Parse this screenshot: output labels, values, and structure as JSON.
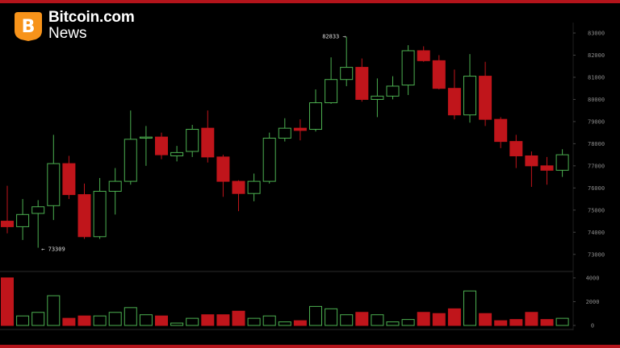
{
  "brand": {
    "name": "Bitcoin.com",
    "sub": "News",
    "logo_icon": "bitcoin-logo-icon",
    "logo_glyph": "B",
    "colors": {
      "logo": "#f7931a",
      "frame": "#b3141b"
    }
  },
  "chart_data": {
    "type": "candlestick",
    "title": "",
    "colors": {
      "up": "#4caf50",
      "down": "#c0151b"
    },
    "price_axis": {
      "ticks": [
        73000,
        74000,
        75000,
        76000,
        77000,
        78000,
        79000,
        80000,
        81000,
        82000,
        83000
      ],
      "labels": [
        "73000",
        "74000",
        "75000",
        "76000",
        "77000",
        "78000",
        "79000",
        "80000",
        "81000",
        "82000",
        "83000"
      ],
      "range": [
        72300,
        83400
      ]
    },
    "volume_axis": {
      "ticks": [
        0,
        2000,
        4000
      ],
      "labels": [
        "0",
        "2000",
        "4000"
      ],
      "range": [
        0,
        4200
      ]
    },
    "annotations": [
      {
        "label": "82833",
        "candle": 22,
        "price": 82833
      },
      {
        "label": "73309",
        "candle": 2,
        "price": 73309
      }
    ],
    "candles": [
      {
        "o": 74500,
        "h": 76100,
        "l": 73950,
        "c": 74250,
        "v": 4000
      },
      {
        "o": 74250,
        "h": 75500,
        "l": 73650,
        "c": 74800,
        "v": 800
      },
      {
        "o": 74850,
        "h": 75450,
        "l": 73300,
        "c": 75150,
        "v": 1100
      },
      {
        "o": 75200,
        "h": 78400,
        "l": 74550,
        "c": 77100,
        "v": 2500
      },
      {
        "o": 77100,
        "h": 77450,
        "l": 75500,
        "c": 75700,
        "v": 600
      },
      {
        "o": 75700,
        "h": 76200,
        "l": 73700,
        "c": 73800,
        "v": 800
      },
      {
        "o": 73800,
        "h": 76450,
        "l": 73700,
        "c": 75850,
        "v": 800
      },
      {
        "o": 75850,
        "h": 76900,
        "l": 74800,
        "c": 76300,
        "v": 1100
      },
      {
        "o": 76300,
        "h": 79500,
        "l": 76150,
        "c": 78200,
        "v": 1500
      },
      {
        "o": 78250,
        "h": 78800,
        "l": 77000,
        "c": 78300,
        "v": 900
      },
      {
        "o": 78300,
        "h": 78500,
        "l": 77300,
        "c": 77500,
        "v": 800
      },
      {
        "o": 77450,
        "h": 77900,
        "l": 77200,
        "c": 77600,
        "v": 200
      },
      {
        "o": 77650,
        "h": 78850,
        "l": 77400,
        "c": 78650,
        "v": 600
      },
      {
        "o": 78700,
        "h": 79500,
        "l": 77150,
        "c": 77400,
        "v": 900
      },
      {
        "o": 77400,
        "h": 77500,
        "l": 75600,
        "c": 76300,
        "v": 900
      },
      {
        "o": 76300,
        "h": 76350,
        "l": 74950,
        "c": 75750,
        "v": 1200
      },
      {
        "o": 75750,
        "h": 76650,
        "l": 75400,
        "c": 76300,
        "v": 600
      },
      {
        "o": 76300,
        "h": 78500,
        "l": 76200,
        "c": 78250,
        "v": 800
      },
      {
        "o": 78250,
        "h": 79150,
        "l": 78100,
        "c": 78700,
        "v": 300
      },
      {
        "o": 78700,
        "h": 79100,
        "l": 78150,
        "c": 78600,
        "v": 400
      },
      {
        "o": 78650,
        "h": 80450,
        "l": 78550,
        "c": 79850,
        "v": 1600
      },
      {
        "o": 79850,
        "h": 81900,
        "l": 79800,
        "c": 80900,
        "v": 1400
      },
      {
        "o": 80900,
        "h": 82833,
        "l": 80600,
        "c": 81450,
        "v": 900
      },
      {
        "o": 81450,
        "h": 81850,
        "l": 79900,
        "c": 80000,
        "v": 1100
      },
      {
        "o": 80000,
        "h": 80950,
        "l": 79200,
        "c": 80150,
        "v": 900
      },
      {
        "o": 80150,
        "h": 81050,
        "l": 80000,
        "c": 80600,
        "v": 300
      },
      {
        "o": 80650,
        "h": 82450,
        "l": 80200,
        "c": 82200,
        "v": 500
      },
      {
        "o": 82200,
        "h": 82400,
        "l": 81700,
        "c": 81750,
        "v": 1100
      },
      {
        "o": 81750,
        "h": 82000,
        "l": 80450,
        "c": 80500,
        "v": 1000
      },
      {
        "o": 80500,
        "h": 81350,
        "l": 79100,
        "c": 79300,
        "v": 1400
      },
      {
        "o": 79300,
        "h": 82050,
        "l": 78950,
        "c": 81050,
        "v": 2900
      },
      {
        "o": 81050,
        "h": 81700,
        "l": 78800,
        "c": 79100,
        "v": 1000
      },
      {
        "o": 79100,
        "h": 79200,
        "l": 77800,
        "c": 78100,
        "v": 400
      },
      {
        "o": 78100,
        "h": 78400,
        "l": 76900,
        "c": 77450,
        "v": 500
      },
      {
        "o": 77450,
        "h": 77650,
        "l": 76050,
        "c": 77000,
        "v": 1100
      },
      {
        "o": 77000,
        "h": 77400,
        "l": 76150,
        "c": 76800,
        "v": 500
      },
      {
        "o": 76800,
        "h": 77750,
        "l": 76500,
        "c": 77500,
        "v": 600
      }
    ]
  }
}
